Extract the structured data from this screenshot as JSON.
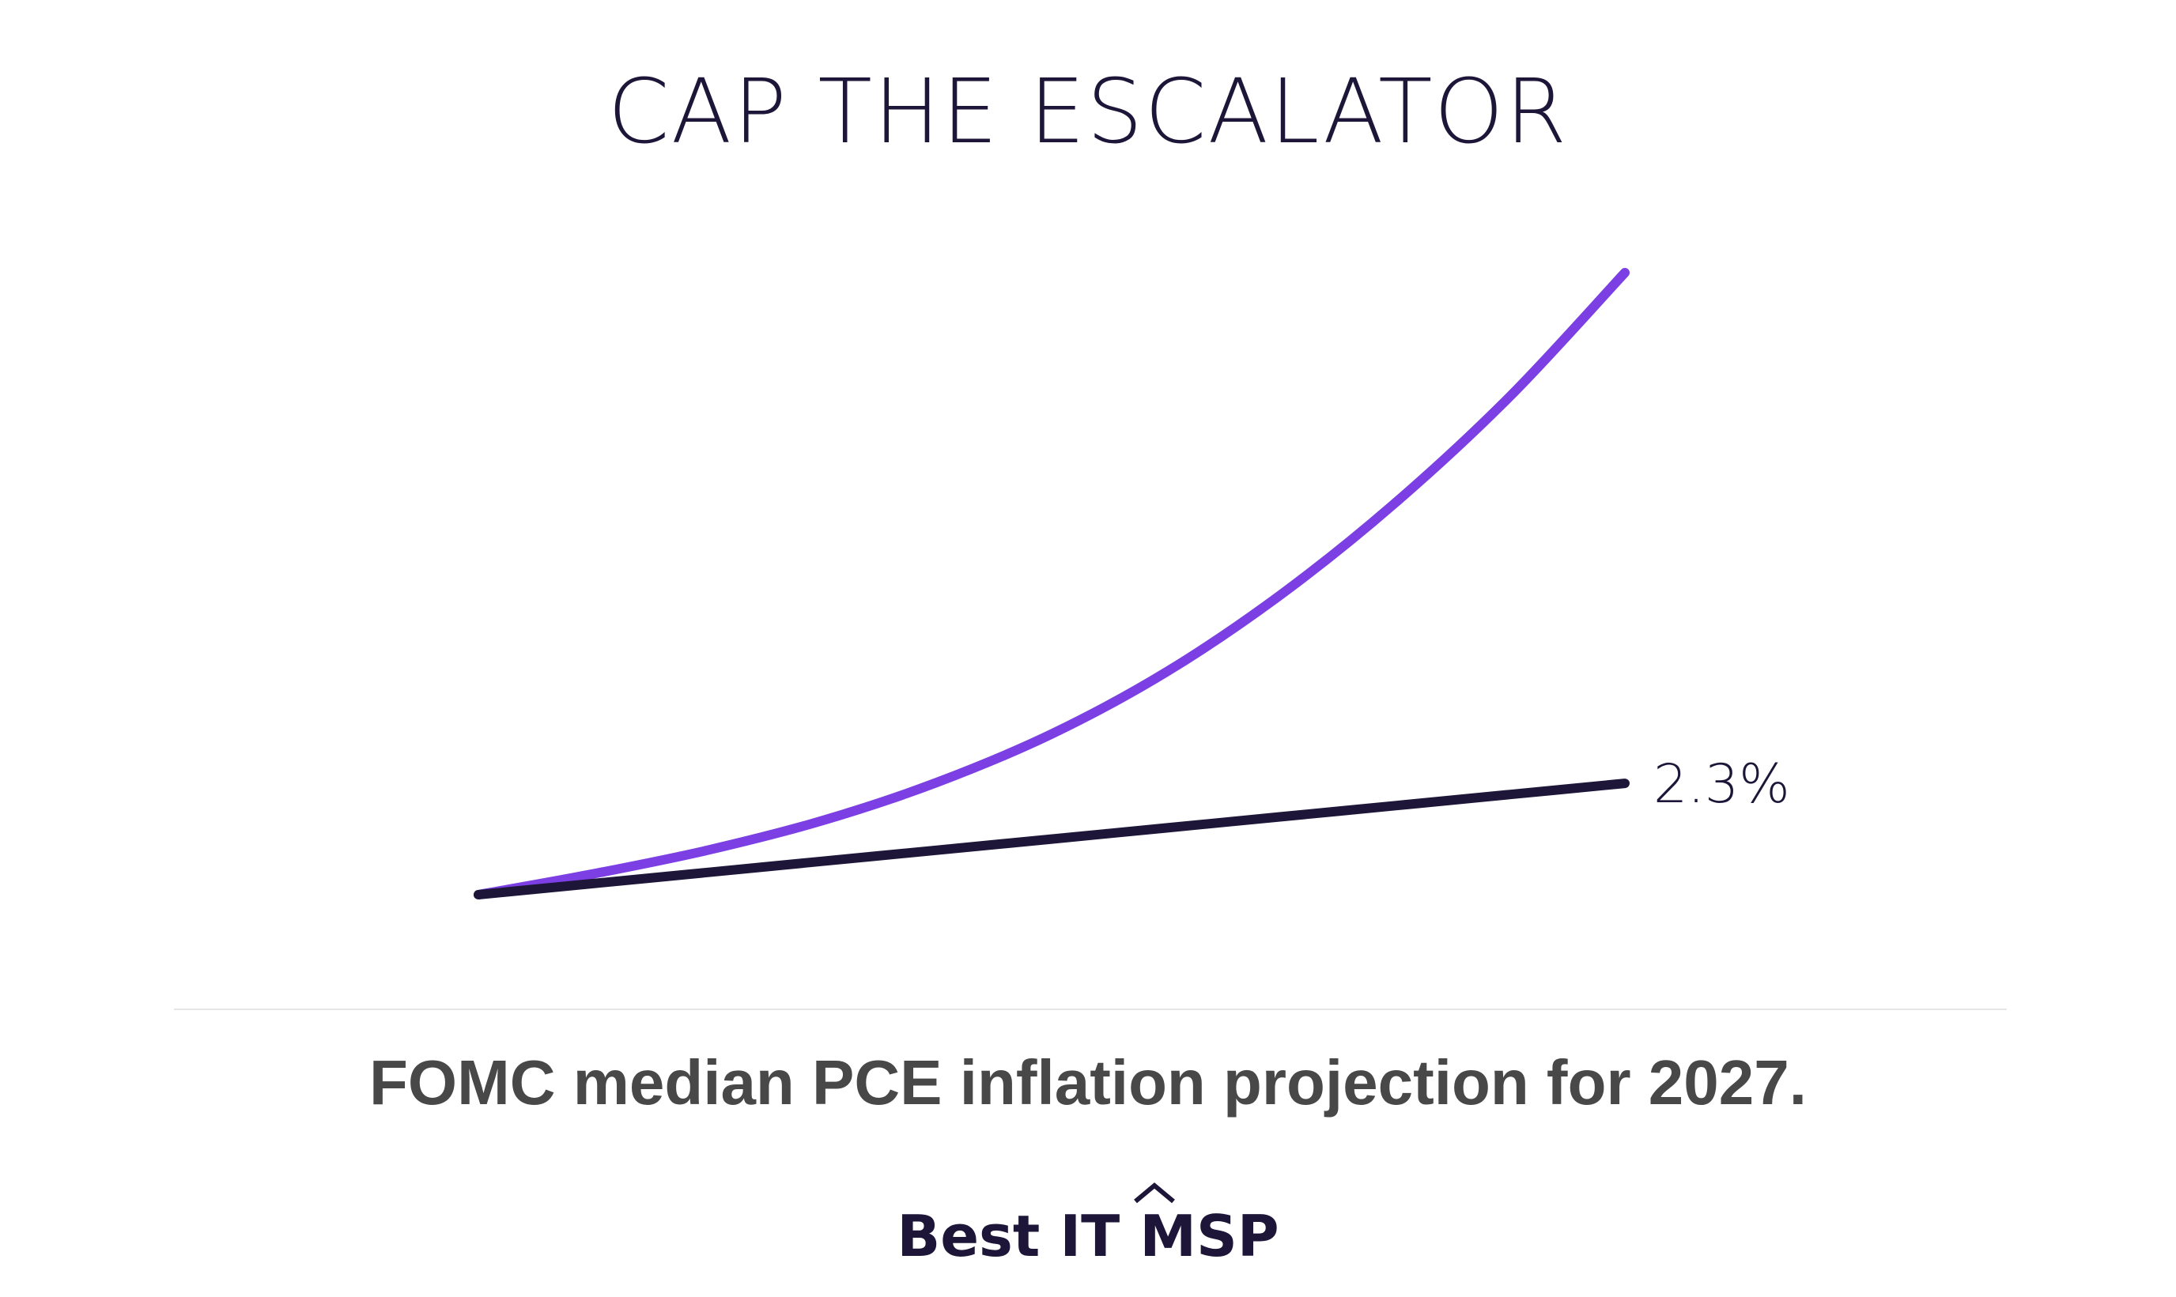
{
  "header": {
    "title": "CAP THE ESCALATOR"
  },
  "chart_data": {
    "type": "line",
    "title": "CAP THE ESCALATOR",
    "grid": false,
    "legend": "none",
    "x": [
      0,
      1,
      2,
      3,
      4,
      5,
      6,
      7,
      8,
      9,
      10
    ],
    "series": [
      {
        "color": "#7b3fe4",
        "values": [
          0,
          0.43,
          0.92,
          1.53,
          2.32,
          3.32,
          4.6,
          6.2,
          8.1,
          10.3,
          12.85
        ]
      },
      {
        "color": "#1d1638",
        "values": [
          0,
          0.23,
          0.46,
          0.69,
          0.92,
          1.15,
          1.38,
          1.61,
          1.84,
          2.07,
          2.3
        ],
        "end_label": "2.3%"
      }
    ],
    "ylim": [
      0,
      12.85
    ]
  },
  "caption": {
    "text": "FOMC median PCE inflation projection for 2027."
  },
  "brand": {
    "name": "Best IT MSP",
    "color": "#1d1638"
  }
}
